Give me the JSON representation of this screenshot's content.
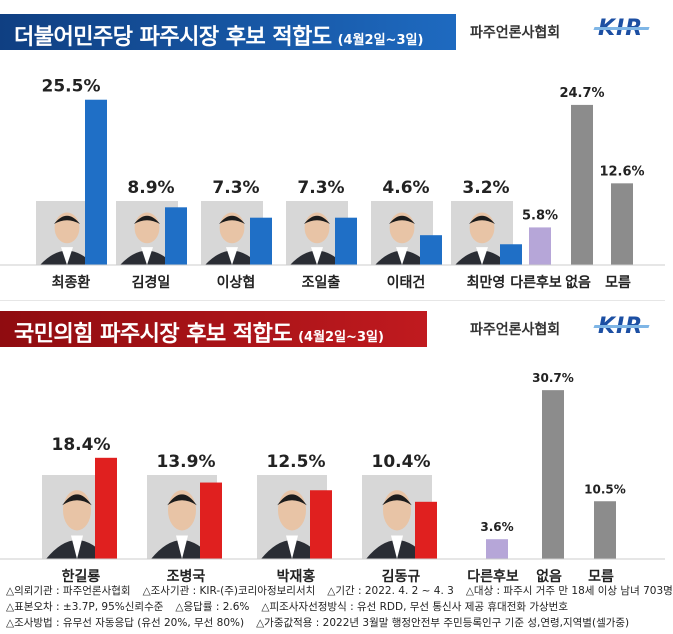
{
  "top": {
    "title": "더불어민주당 파주시장 후보 적합도",
    "date": "(4월2일~3일)",
    "association": "파주언론사협회",
    "logo": "KIR"
  },
  "bottom": {
    "title": "국민의힘 파주시장 후보 적합도",
    "date": "(4월2일~3일)",
    "association": "파주언론사협회",
    "logo": "KIR"
  },
  "chart_data": [
    {
      "type": "bar",
      "title": "더불어민주당 파주시장 후보 적합도",
      "categories": [
        "최종환",
        "김경일",
        "이상협",
        "조일출",
        "이태건",
        "최만영",
        "다른후보",
        "없음",
        "모름"
      ],
      "values": [
        25.5,
        8.9,
        7.3,
        7.3,
        4.6,
        3.2,
        5.8,
        24.7,
        12.6
      ],
      "value_labels": [
        "25.5%",
        "8.9%",
        "7.3%",
        "7.3%",
        "4.6%",
        "3.2%",
        "5.8%",
        "24.7%",
        "12.6%"
      ],
      "colors": [
        "#1f6fc6",
        "#1f6fc6",
        "#1f6fc6",
        "#1f6fc6",
        "#1f6fc6",
        "#1f6fc6",
        "#b6a6d8",
        "#8c8c8c",
        "#8c8c8c"
      ],
      "ylim": [
        0,
        27
      ]
    },
    {
      "type": "bar",
      "title": "국민의힘 파주시장 후보 적합도",
      "categories": [
        "한길룡",
        "조병국",
        "박재홍",
        "김동규",
        "다른후보",
        "없음",
        "모름"
      ],
      "values": [
        18.4,
        13.9,
        12.5,
        10.4,
        3.6,
        30.7,
        10.5
      ],
      "value_labels": [
        "18.4%",
        "13.9%",
        "12.5%",
        "10.4%",
        "3.6%",
        "30.7%",
        "10.5%"
      ],
      "colors": [
        "#e0201f",
        "#e0201f",
        "#e0201f",
        "#e0201f",
        "#b6a6d8",
        "#8c8c8c",
        "#8c8c8c"
      ],
      "ylim": [
        0,
        32
      ]
    }
  ],
  "footnotes": [
    [
      "△의뢰기관 : 파주언론사협회",
      "△조사기관 : KIR-(주)코리아정보리서치",
      "△기간 : 2022. 4. 2 ~ 4. 3",
      "△대상 : 파주시 거주 만 18세 이상 남녀 703명"
    ],
    [
      "△표본오차 : ±3.7P, 95%신뢰수준",
      "△응답률 : 2.6%",
      "△피조사자선정방식 : 유선 RDD, 무선 통신사 제공 휴대전화 가상번호"
    ],
    [
      "△조사방법 : 유무선 자동응답 (유선 20%, 무선 80%)",
      "△가중값적용 : 2022년 3월말 행정안전부 주민등록인구 기준 성,연령,지역별(셀가중)"
    ]
  ]
}
